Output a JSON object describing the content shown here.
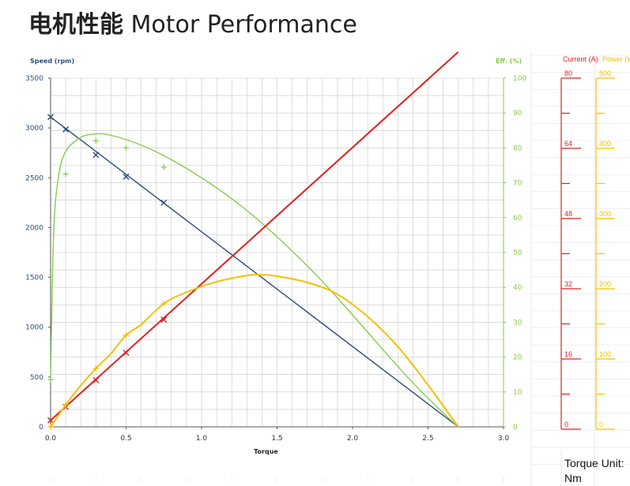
{
  "page": {
    "title_cn": "电机性能",
    "title_en": "Motor Performance",
    "torque_unit_line1": "Torque Unit:",
    "torque_unit_line2": "Nm"
  },
  "colors": {
    "speed": "#2e4d7b",
    "efficiency": "#86cc4a",
    "current": "#e02020",
    "power": "#f5c000",
    "grid": "#c8c8c8"
  },
  "chart_data": {
    "type": "line",
    "xlabel": "Torque",
    "ylabel_left": "Speed (rpm)",
    "ylabel_right": "Eff. (%)",
    "x_ticks": [
      "0.0",
      "0.5",
      "1.0",
      "1.5",
      "2.0",
      "2.5",
      "3.0"
    ],
    "xlim": [
      0,
      3.0
    ],
    "y_left_ticks": [
      "0",
      "500",
      "1000",
      "1500",
      "2000",
      "2500",
      "3000",
      "3500"
    ],
    "ylim_left": [
      0,
      3500
    ],
    "y_right_ticks": [
      "0",
      "10",
      "20",
      "30",
      "40",
      "50",
      "60",
      "70",
      "80",
      "90",
      "100"
    ],
    "ylim_right": [
      0,
      100
    ],
    "grid": true,
    "series": [
      {
        "key": "speed",
        "axis": "speed",
        "markers": [
          [
            0.0,
            3110
          ],
          [
            0.1,
            2985
          ],
          [
            0.3,
            2730
          ],
          [
            0.5,
            2510
          ],
          [
            0.75,
            2250
          ]
        ],
        "curve": [
          [
            0.0,
            3110
          ],
          [
            2.7,
            0
          ]
        ]
      },
      {
        "key": "efficiency",
        "axis": "efficiency",
        "markers": [
          [
            0.0,
            13.5
          ],
          [
            0.1,
            72.5
          ],
          [
            0.3,
            82.0
          ],
          [
            0.5,
            80.0
          ],
          [
            0.75,
            74.5
          ]
        ],
        "curve": [
          [
            0.0,
            13.5
          ],
          [
            0.02,
            55
          ],
          [
            0.05,
            71
          ],
          [
            0.1,
            79
          ],
          [
            0.2,
            83
          ],
          [
            0.3,
            84
          ],
          [
            0.4,
            83.6
          ],
          [
            0.6,
            80.8
          ],
          [
            0.8,
            76.6
          ],
          [
            1.0,
            71.4
          ],
          [
            1.2,
            65.4
          ],
          [
            1.4,
            58.4
          ],
          [
            1.6,
            50.4
          ],
          [
            1.8,
            41.7
          ],
          [
            2.0,
            32.1
          ],
          [
            2.2,
            22.2
          ],
          [
            2.4,
            12.6
          ],
          [
            2.6,
            4.0
          ],
          [
            2.7,
            0
          ]
        ]
      },
      {
        "key": "current",
        "axis": "current",
        "markers": [
          [
            0.0,
            1.5
          ],
          [
            0.1,
            4.6
          ],
          [
            0.3,
            10.7
          ],
          [
            0.5,
            17.0
          ],
          [
            0.75,
            24.6
          ]
        ],
        "curve": [
          [
            0.0,
            1.5
          ],
          [
            2.7,
            86.0
          ]
        ]
      },
      {
        "key": "power",
        "axis": "power",
        "markers": [
          [
            0.0,
            0
          ],
          [
            0.1,
            31.6
          ],
          [
            0.3,
            83.8
          ],
          [
            0.5,
            131.4
          ],
          [
            0.75,
            176.7
          ]
        ],
        "curve": [
          [
            0.0,
            0
          ],
          [
            0.1,
            31.6
          ],
          [
            0.2,
            59.4
          ],
          [
            0.3,
            83.8
          ],
          [
            0.4,
            105.1
          ],
          [
            0.5,
            131.4
          ],
          [
            0.6,
            146.7
          ],
          [
            0.75,
            176.7
          ],
          [
            0.9,
            193.0
          ],
          [
            1.1,
            208.0
          ],
          [
            1.3,
            217.0
          ],
          [
            1.4,
            218.0
          ],
          [
            1.5,
            216.0
          ],
          [
            1.7,
            207.0
          ],
          [
            1.9,
            190.0
          ],
          [
            2.1,
            158.0
          ],
          [
            2.3,
            115.0
          ],
          [
            2.5,
            60.0
          ],
          [
            2.7,
            0
          ]
        ]
      }
    ],
    "side_axes": [
      {
        "key": "current",
        "label": "Current (A)",
        "ticks": [
          "80",
          "64",
          "48",
          "32",
          "16",
          "0"
        ],
        "max": 80
      },
      {
        "key": "power",
        "label": "Power (W",
        "ticks": [
          "500",
          "400",
          "300",
          "200",
          "100",
          "0"
        ],
        "max": 500
      }
    ]
  }
}
